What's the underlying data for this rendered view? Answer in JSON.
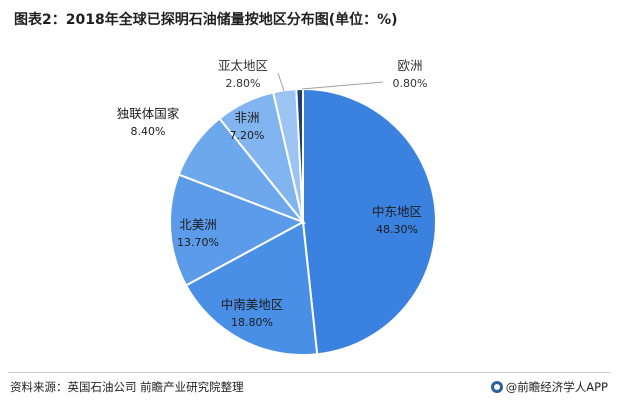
{
  "title": "图表2：2018年全球已探明石油储量按地区分布图(单位：%)",
  "source": "资料来源：英国石油公司 前瞻产业研究院整理",
  "brand": "@前瞻经济学人APP",
  "chart_data": {
    "type": "pie",
    "title": "图表2：2018年全球已探明石油储量按地区分布图(单位：%)",
    "slices": [
      {
        "name": "中东地区",
        "value": 48.3,
        "label": "48.30%",
        "color": "#3b82e0"
      },
      {
        "name": "中南美地区",
        "value": 18.8,
        "label": "18.80%",
        "color": "#4a8fe6"
      },
      {
        "name": "北美洲",
        "value": 13.7,
        "label": "13.70%",
        "color": "#5b9be9"
      },
      {
        "name": "独联体国家",
        "value": 8.4,
        "label": "8.40%",
        "color": "#6ea8ec"
      },
      {
        "name": "非洲",
        "value": 7.2,
        "label": "7.20%",
        "color": "#82b5ef"
      },
      {
        "name": "亚太地区",
        "value": 2.8,
        "label": "2.80%",
        "color": "#9cc4f2"
      },
      {
        "name": "欧洲",
        "value": 0.8,
        "label": "0.80%",
        "color": "#1c3f78"
      }
    ]
  }
}
